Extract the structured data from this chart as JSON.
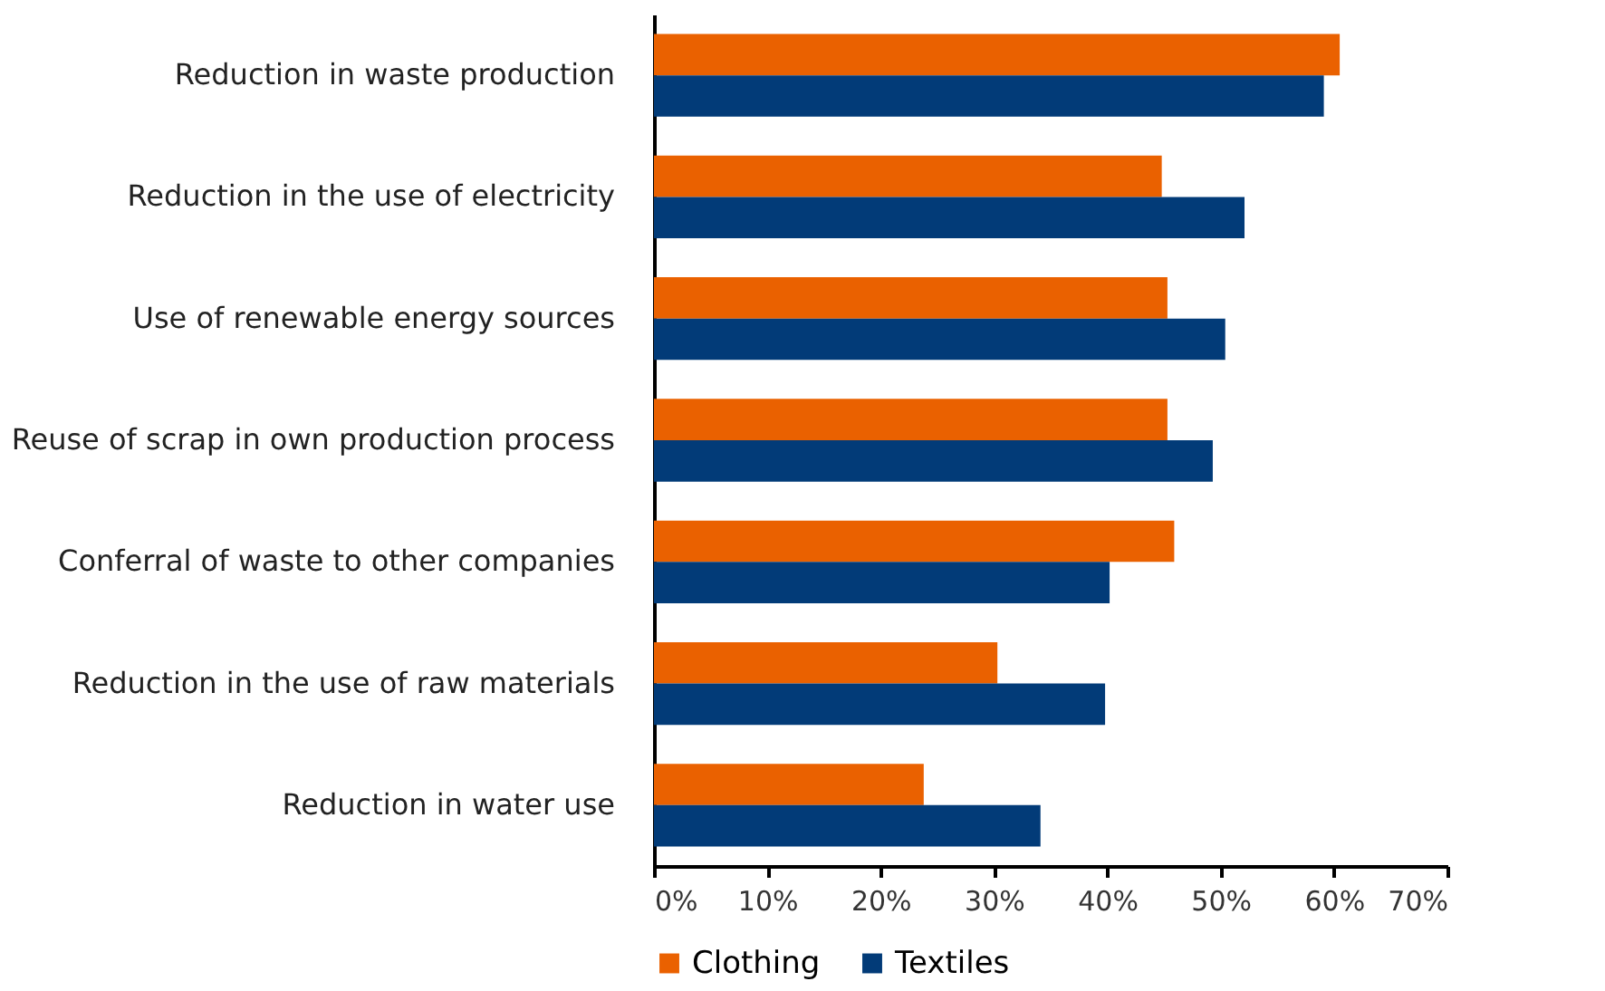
{
  "chart_data": {
    "type": "bar",
    "orientation": "horizontal",
    "categories": [
      "Reduction in waste production",
      "Reduction in the use of electricity",
      "Use of renewable energy sources",
      "Reuse of scrap in own production process",
      "Conferral of waste to other companies",
      "Reduction in the use of raw materials",
      "Reduction in water use"
    ],
    "series": [
      {
        "name": "Clothing",
        "color": "#ea6100",
        "values": [
          60.5,
          44.8,
          45.3,
          45.3,
          45.9,
          30.3,
          23.8
        ]
      },
      {
        "name": "Textiles",
        "color": "#023b78",
        "values": [
          59.1,
          52.1,
          50.4,
          49.3,
          40.2,
          39.8,
          34.1
        ]
      }
    ],
    "xlim": [
      0,
      70
    ],
    "xticks": [
      {
        "value": 0,
        "label": "0%"
      },
      {
        "value": 10,
        "label": "10%"
      },
      {
        "value": 20,
        "label": "20%"
      },
      {
        "value": 30,
        "label": "30%"
      },
      {
        "value": 40,
        "label": "40%"
      },
      {
        "value": 50,
        "label": "50%"
      },
      {
        "value": 60,
        "label": "60%"
      },
      {
        "value": 70,
        "label": "70%"
      }
    ],
    "grid": false,
    "legend": "bottom"
  }
}
